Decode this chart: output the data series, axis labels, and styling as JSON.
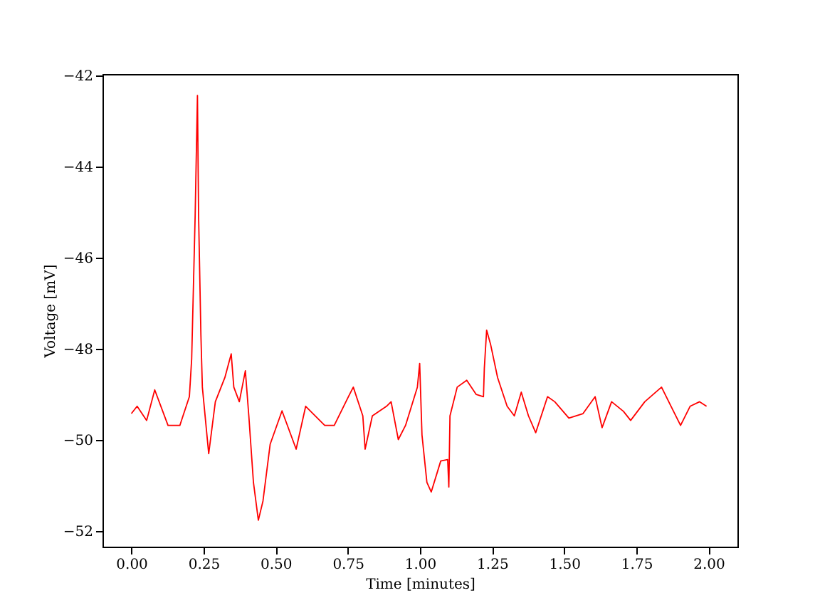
{
  "chart_data": {
    "type": "line",
    "xlabel": "Time [minutes]",
    "ylabel": "Voltage [mV]",
    "x": [
      0.0,
      0.02,
      0.053,
      0.081,
      0.127,
      0.168,
      0.201,
      0.209,
      0.221,
      0.229,
      0.233,
      0.234,
      0.241,
      0.246,
      0.268,
      0.291,
      0.324,
      0.346,
      0.355,
      0.374,
      0.395,
      0.407,
      0.423,
      0.44,
      0.456,
      0.481,
      0.522,
      0.571,
      0.604,
      0.67,
      0.703,
      0.752,
      0.769,
      0.802,
      0.81,
      0.835,
      0.884,
      0.9,
      0.925,
      0.95,
      0.991,
      0.999,
      1.007,
      1.024,
      1.039,
      1.072,
      1.096,
      1.1,
      1.104,
      1.129,
      1.162,
      1.195,
      1.22,
      1.223,
      1.231,
      1.245,
      1.269,
      1.302,
      1.327,
      1.351,
      1.376,
      1.401,
      1.442,
      1.467,
      1.516,
      1.565,
      1.607,
      1.631,
      1.664,
      1.705,
      1.73,
      1.779,
      1.837,
      1.87,
      1.903,
      1.936,
      1.969,
      1.993
    ],
    "series": [
      {
        "color": "#ff0000",
        "values": [
          -49.42,
          -49.26,
          -49.57,
          -48.9,
          -49.68,
          -49.68,
          -49.05,
          -48.22,
          -45.09,
          -42.44,
          -45.09,
          -45.41,
          -47.7,
          -48.84,
          -50.3,
          -49.16,
          -48.63,
          -48.11,
          -48.84,
          -49.16,
          -48.48,
          -49.47,
          -50.93,
          -51.76,
          -51.34,
          -50.09,
          -49.36,
          -50.2,
          -49.26,
          -49.68,
          -49.68,
          -49.05,
          -48.84,
          -49.47,
          -50.2,
          -49.47,
          -49.26,
          -49.16,
          -49.99,
          -49.68,
          -48.84,
          -48.32,
          -49.89,
          -50.93,
          -51.14,
          -50.46,
          -50.43,
          -51.03,
          -49.47,
          -48.84,
          -48.69,
          -49.0,
          -49.05,
          -48.43,
          -47.59,
          -47.91,
          -48.63,
          -49.26,
          -49.47,
          -48.95,
          -49.47,
          -49.84,
          -49.05,
          -49.16,
          -49.52,
          -49.42,
          -49.05,
          -49.73,
          -49.16,
          -49.37,
          -49.57,
          -49.16,
          -48.84,
          -49.26,
          -49.68,
          -49.26,
          -49.16,
          -49.26
        ]
      }
    ],
    "xlim": [
      -0.1,
      2.1
    ],
    "ylim": [
      -52.34,
      -41.97
    ],
    "xticks": [
      {
        "value": 0,
        "label": "0.00"
      },
      {
        "value": 0.25,
        "label": "0.25"
      },
      {
        "value": 0.5,
        "label": "0.50"
      },
      {
        "value": 0.75,
        "label": "0.75"
      },
      {
        "value": 1,
        "label": "1.00"
      },
      {
        "value": 1.25,
        "label": "1.25"
      },
      {
        "value": 1.5,
        "label": "1.50"
      },
      {
        "value": 1.75,
        "label": "1.75"
      },
      {
        "value": 2,
        "label": "2.00"
      }
    ],
    "yticks": [
      {
        "value": -52,
        "label": "−52"
      },
      {
        "value": -50,
        "label": "−50"
      },
      {
        "value": -48,
        "label": "−48"
      },
      {
        "value": -46,
        "label": "−46"
      },
      {
        "value": -44,
        "label": "−44"
      },
      {
        "value": -42,
        "label": "−42"
      }
    ],
    "marker": "none",
    "line_style": "solid"
  }
}
